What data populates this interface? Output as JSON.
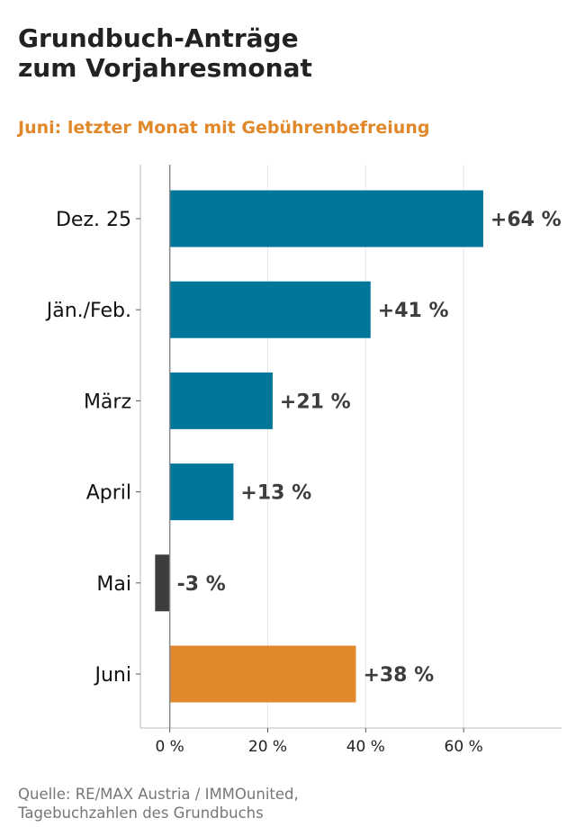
{
  "title_lines": [
    "Grundbuch-Anträge",
    "zum Vorjahresmonat"
  ],
  "subtitle": "Juni: letzter Monat mit Gebührenbefreiung",
  "source_lines": [
    "Quelle: RE/MAX Austria / IMMOunited,",
    "Tagebuchzahlen des Grundbuchs"
  ],
  "colors": {
    "primary": "#00779a",
    "negative": "#3d3d3d",
    "highlight": "#e0882a",
    "subtitle": "#e0882a",
    "label": "#3d3d3d"
  },
  "chart_data": {
    "type": "bar",
    "orientation": "horizontal",
    "categories": [
      "Dez. 25",
      "Jän./Feb.",
      "März",
      "April",
      "Mai",
      "Juni"
    ],
    "values": [
      64,
      41,
      21,
      13,
      -3,
      38
    ],
    "data_labels": [
      "+64 %",
      "+41 %",
      "+21 %",
      "+13 %",
      "-3 %",
      "+38 %"
    ],
    "highlight_category": "Juni",
    "xlim": [
      -6,
      80
    ],
    "xticks": [
      0,
      20,
      40,
      60
    ],
    "xtick_labels": [
      "0 %",
      "20 %",
      "40 %",
      "60 %"
    ],
    "grid": "vertical",
    "legend": "none"
  }
}
